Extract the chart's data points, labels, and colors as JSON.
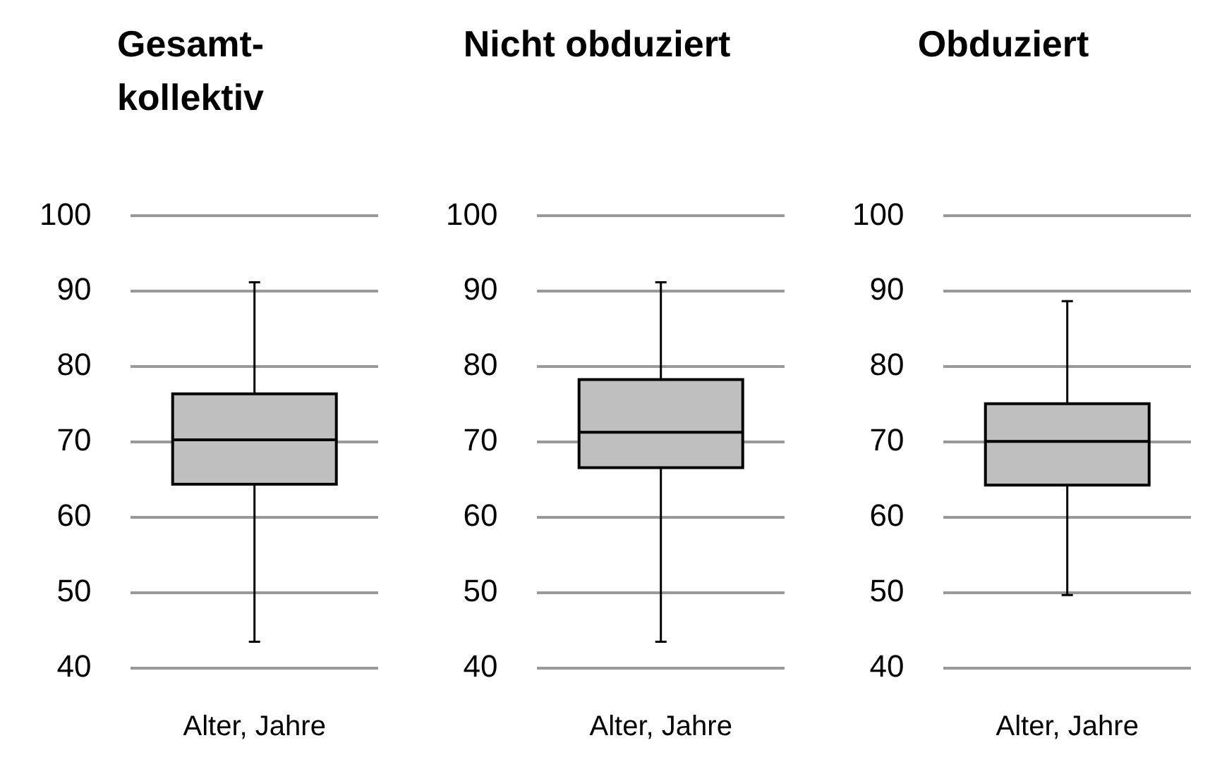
{
  "chart_data": [
    {
      "type": "box",
      "title": "Gesamt-kollektiv",
      "xlabel": "Alter, Jahre",
      "categories": [
        null
      ],
      "color": "#bfbfbf",
      "boxes": [
        {
          "low": 43.5,
          "q1": 64.4,
          "median": 70.3,
          "q3": 76.4,
          "high": 91.2
        }
      ],
      "ylim": [
        40,
        100
      ],
      "yticks": [
        40,
        50,
        60,
        70,
        80,
        90,
        100
      ],
      "grid": "y"
    },
    {
      "type": "box",
      "title": "Nicht obduziert",
      "xlabel": "Alter, Jahre",
      "categories": [
        null
      ],
      "color": "#bfbfbf",
      "boxes": [
        {
          "low": 43.5,
          "q1": 66.6,
          "median": 71.3,
          "q3": 78.3,
          "high": 91.2
        }
      ],
      "ylim": [
        40,
        100
      ],
      "yticks": [
        40,
        50,
        60,
        70,
        80,
        90,
        100
      ],
      "grid": "y"
    },
    {
      "type": "box",
      "title": "Obduziert",
      "xlabel": "Alter, Jahre",
      "categories": [
        null
      ],
      "color": "#bfbfbf",
      "boxes": [
        {
          "low": 49.7,
          "q1": 64.3,
          "median": 70.1,
          "q3": 75.1,
          "high": 88.7
        }
      ],
      "ylim": [
        40,
        100
      ],
      "yticks": [
        40,
        50,
        60,
        70,
        80,
        90,
        100
      ],
      "grid": "y"
    }
  ]
}
